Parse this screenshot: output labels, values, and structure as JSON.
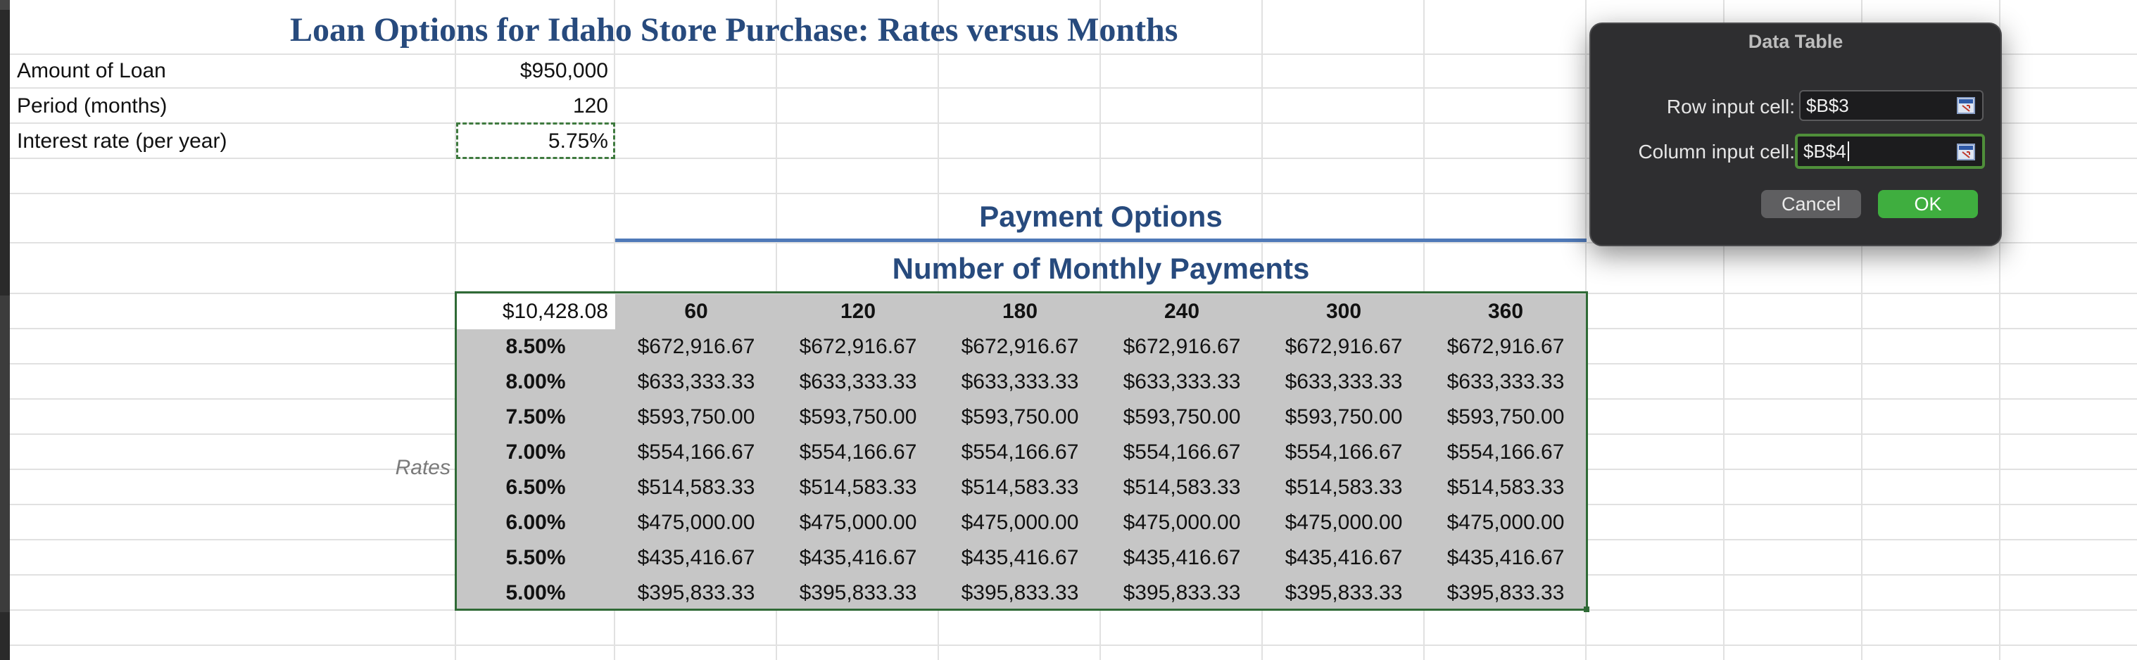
{
  "title": "Loan Options for Idaho Store Purchase: Rates versus Months",
  "inputs": [
    {
      "label": "Amount of Loan",
      "value": "$950,000"
    },
    {
      "label": "Period (months)",
      "value": "120"
    },
    {
      "label": "Interest rate (per year)",
      "value": "5.75%"
    }
  ],
  "section_title": "Payment Options",
  "sub_title": "Number of Monthly Payments",
  "table": {
    "corner": "$10,428.08",
    "months": [
      "60",
      "120",
      "180",
      "240",
      "300",
      "360"
    ],
    "rates_label": "Rates",
    "rows": [
      {
        "rate": "8.50%",
        "value": "$672,916.67"
      },
      {
        "rate": "8.00%",
        "value": "$633,333.33"
      },
      {
        "rate": "7.50%",
        "value": "$593,750.00"
      },
      {
        "rate": "7.00%",
        "value": "$554,166.67"
      },
      {
        "rate": "6.50%",
        "value": "$514,583.33"
      },
      {
        "rate": "6.00%",
        "value": "$475,000.00"
      },
      {
        "rate": "5.50%",
        "value": "$435,416.67"
      },
      {
        "rate": "5.00%",
        "value": "$395,833.33"
      }
    ]
  },
  "dialog": {
    "title": "Data Table",
    "row_input_label": "Row input cell:",
    "row_input_value": "$B$3",
    "column_input_label": "Column input cell:",
    "column_input_value": "$B$4",
    "cancel_label": "Cancel",
    "ok_label": "OK"
  }
}
